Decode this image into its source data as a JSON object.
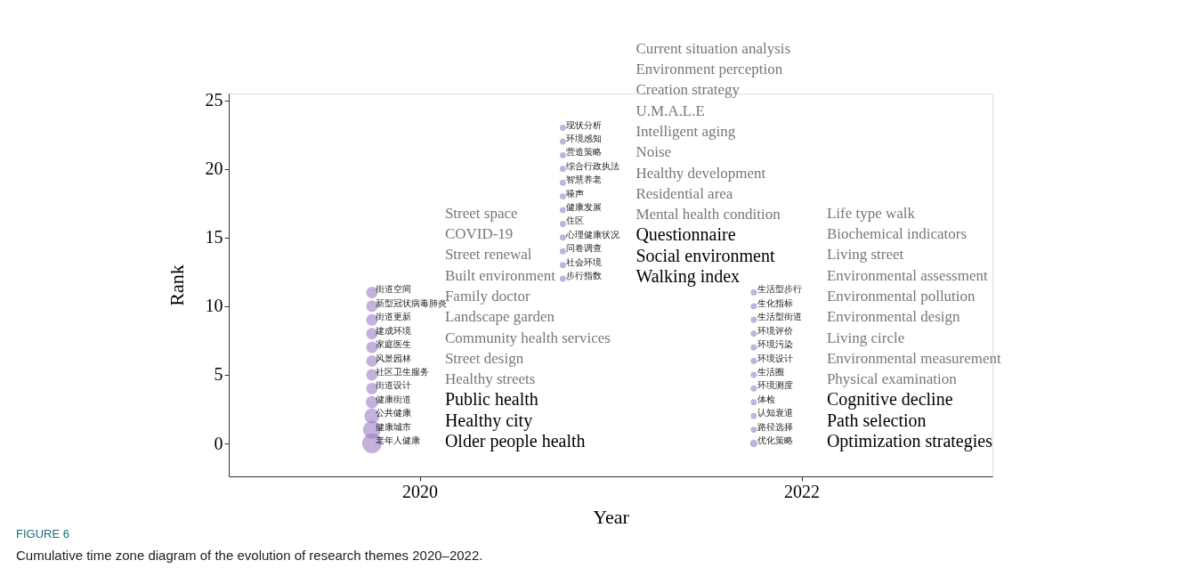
{
  "chart_data": {
    "type": "bubble",
    "xlabel": "Year",
    "ylabel": "Rank",
    "xlim": [
      2019,
      2023
    ],
    "xticks": [
      2020,
      2022
    ],
    "ylim": [
      -2.4,
      25.5
    ],
    "yticks": [
      0,
      5,
      10,
      15,
      20,
      25
    ],
    "grid": false,
    "series": [
      {
        "color": "#9b7fc4",
        "x": [
          2019.75,
          2019.75,
          2019.75,
          2019.75,
          2019.75,
          2019.75,
          2019.75,
          2019.75,
          2019.75,
          2019.75,
          2019.75,
          2019.75,
          2020.75,
          2020.75,
          2020.75,
          2020.75,
          2020.75,
          2020.75,
          2020.75,
          2020.75,
          2020.75,
          2020.75,
          2020.75,
          2020.75,
          2021.75,
          2021.75,
          2021.75,
          2021.75,
          2021.75,
          2021.75,
          2021.75,
          2021.75,
          2021.75,
          2021.75,
          2021.75,
          2021.75
        ],
        "values": [
          11,
          10,
          9,
          8,
          7,
          6,
          5,
          4,
          3,
          2,
          1,
          0,
          23,
          22,
          21,
          20,
          19,
          18,
          17,
          16,
          15,
          14,
          13,
          12,
          11,
          10,
          9,
          8,
          7,
          6,
          5,
          4,
          3,
          2,
          1,
          0
        ],
        "sizes": [
          0.35,
          0.35,
          0.35,
          0.35,
          0.35,
          0.35,
          0.35,
          0.35,
          0.4,
          0.6,
          0.85,
          1,
          0.1,
          0.1,
          0.1,
          0.1,
          0.1,
          0.1,
          0.1,
          0.1,
          0.1,
          0.1,
          0.1,
          0.1,
          0.1,
          0.1,
          0.1,
          0.1,
          0.1,
          0.1,
          0.1,
          0.1,
          0.1,
          0.1,
          0.1,
          0.15
        ],
        "value_labels": [
          "街道空间",
          "新型冠状病毒肺炎",
          "街道更新",
          "建成环境",
          "家庭医生",
          "风景园林",
          "社区卫生服务",
          "街道设计",
          "健康街道",
          "公共健康",
          "健康城市",
          "老年人健康",
          "现状分析",
          "环境感知",
          "营造策略",
          "综合行政执法",
          "智慧养老",
          "噪声",
          "健康发展",
          "住区",
          "心理健康状况",
          "问卷调查",
          "社会环境",
          "步行指数",
          "生活型步行",
          "生化指标",
          "生活型街道",
          "环境评价",
          "环境污染",
          "环境设计",
          "生活圈",
          "环境测度",
          "体检",
          "认知衰退",
          "路径选择",
          "优化策略"
        ]
      }
    ],
    "annotations": [
      "Street space",
      "COVID-19",
      "Street renewal",
      "Built environment",
      "Family doctor",
      "Landscape garden",
      "Community health services",
      "Street design",
      "Healthy streets",
      "Public health",
      "Healthy city",
      "Older people health",
      "Current situation analysis",
      "Environment perception",
      "Creation strategy",
      "U.M.A.L.E",
      "Intelligent aging",
      "Noise",
      "Healthy development",
      "Residential area",
      "Mental health condition",
      "Questionnaire",
      "Social environment",
      "Walking index",
      "Life type walk",
      "Biochemical indicators",
      "Living street",
      "Environmental assessment",
      "Environmental pollution",
      "Environmental design",
      "Living circle",
      "Environmental measurement",
      "Physical examination",
      "Cognitive decline",
      "Path selection",
      "Optimization strategies",
      "FIGURE 6",
      "Cumulative time zone diagram of the evolution of research themes 2020–2022."
    ]
  }
}
